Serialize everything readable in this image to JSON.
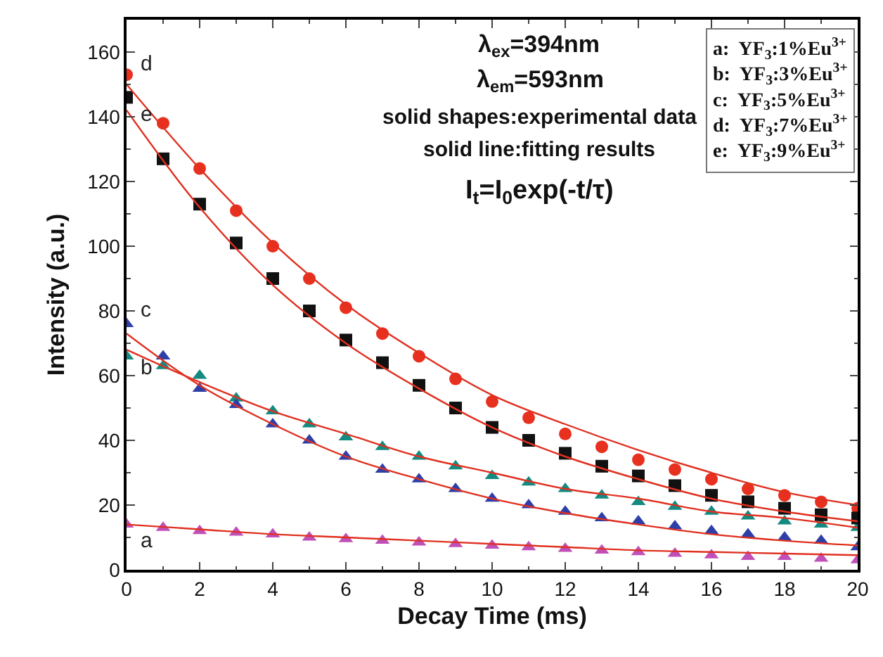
{
  "chart_data": {
    "type": "scatter",
    "xlabel": "Decay Time (ms)",
    "ylabel": "Intensity (a.u.)",
    "xlim": [
      0,
      20
    ],
    "xticks": [
      0,
      2,
      4,
      6,
      8,
      10,
      12,
      14,
      16,
      18,
      20
    ],
    "ylim": [
      0,
      170
    ],
    "yticks": [
      0,
      20,
      40,
      60,
      80,
      100,
      120,
      140,
      160
    ],
    "grid": false,
    "x": [
      0,
      1,
      2,
      3,
      4,
      5,
      6,
      7,
      8,
      9,
      10,
      11,
      12,
      13,
      14,
      15,
      16,
      17,
      18,
      19,
      20
    ],
    "series": [
      {
        "name": "a",
        "color": "#c050b8",
        "marker": "triangle",
        "values": [
          14,
          13,
          12,
          11.5,
          11,
          10,
          9.5,
          9,
          8.5,
          8,
          7.5,
          7,
          6.5,
          6,
          5.5,
          5,
          4.5,
          4,
          4,
          3.5,
          3
        ]
      },
      {
        "name": "b",
        "color": "#148a80",
        "marker": "triangle",
        "values": [
          66,
          63,
          60,
          53,
          49,
          45,
          41,
          38,
          35,
          32,
          29,
          27,
          25,
          23,
          21,
          19.5,
          18,
          16.5,
          15,
          14,
          13
        ]
      },
      {
        "name": "c",
        "color": "#2e3fa8",
        "marker": "triangle",
        "values": [
          76,
          66,
          56,
          51,
          45,
          40,
          35,
          31,
          28,
          25,
          22,
          20,
          18,
          16,
          15,
          13.5,
          12,
          11,
          10,
          9,
          7
        ]
      },
      {
        "name": "d",
        "color": "#e8301e",
        "marker": "circle",
        "values": [
          153,
          138,
          124,
          111,
          100,
          90,
          81,
          73,
          66,
          59,
          52,
          47,
          42,
          38,
          34,
          31,
          28,
          25,
          23,
          21,
          19
        ]
      },
      {
        "name": "e",
        "color": "#111111",
        "marker": "square",
        "values": [
          146,
          127,
          113,
          101,
          90,
          80,
          71,
          64,
          57,
          50,
          44,
          40,
          36,
          32,
          29,
          26,
          23,
          21,
          19,
          17,
          16
        ]
      },
      {
        "type": "line",
        "color": "#e03020",
        "marker": "none",
        "x": [
          0,
          2,
          4,
          6,
          8,
          10,
          12,
          14,
          16,
          18,
          20
        ],
        "values": [
          14,
          12.5,
          11,
          10,
          9,
          8,
          7,
          6,
          5.5,
          5,
          4.5
        ]
      },
      {
        "type": "line",
        "color": "#e03020",
        "marker": "none",
        "x": [
          0,
          2,
          4,
          6,
          8,
          10,
          12,
          14,
          16,
          18,
          20
        ],
        "values": [
          68,
          58,
          49,
          42,
          35,
          30,
          25,
          22,
          18,
          16,
          13
        ]
      },
      {
        "type": "line",
        "color": "#e03020",
        "marker": "none",
        "x": [
          0,
          2,
          4,
          6,
          8,
          10,
          12,
          14,
          16,
          18,
          20
        ],
        "values": [
          73,
          57,
          45,
          35,
          28,
          22,
          17.5,
          14,
          11,
          9,
          7.5
        ]
      },
      {
        "type": "line",
        "color": "#e03020",
        "marker": "none",
        "x": [
          0,
          2,
          4,
          6,
          8,
          10,
          12,
          14,
          16,
          18,
          20
        ],
        "values": [
          150,
          124,
          101,
          82,
          67,
          54,
          45,
          37,
          30,
          24,
          20
        ]
      },
      {
        "type": "line",
        "color": "#e03020",
        "marker": "none",
        "x": [
          0,
          2,
          4,
          6,
          8,
          10,
          12,
          14,
          16,
          18,
          20
        ],
        "values": [
          142,
          112,
          88,
          70,
          56,
          44,
          35,
          28,
          22,
          18,
          15
        ]
      }
    ],
    "annotations": [
      "λ$_{ex}$=394nm",
      "λ$_{em}$=593nm",
      "solid shapes:experimental data",
      "solid line:fitting results",
      "I$_{t}$=I$_{0}$exp(-t/τ)",
      "a:  YF$_{3}$:1%Eu$^{3+}$",
      "b:  YF$_{3}$:3%Eu$^{3+}$",
      "c:  YF$_{3}$:5%Eu$^{3+}$",
      "d:  YF$_{3}$:7%Eu$^{3+}$",
      "e:  YF$_{3}$:9%Eu$^{3+}$"
    ]
  }
}
